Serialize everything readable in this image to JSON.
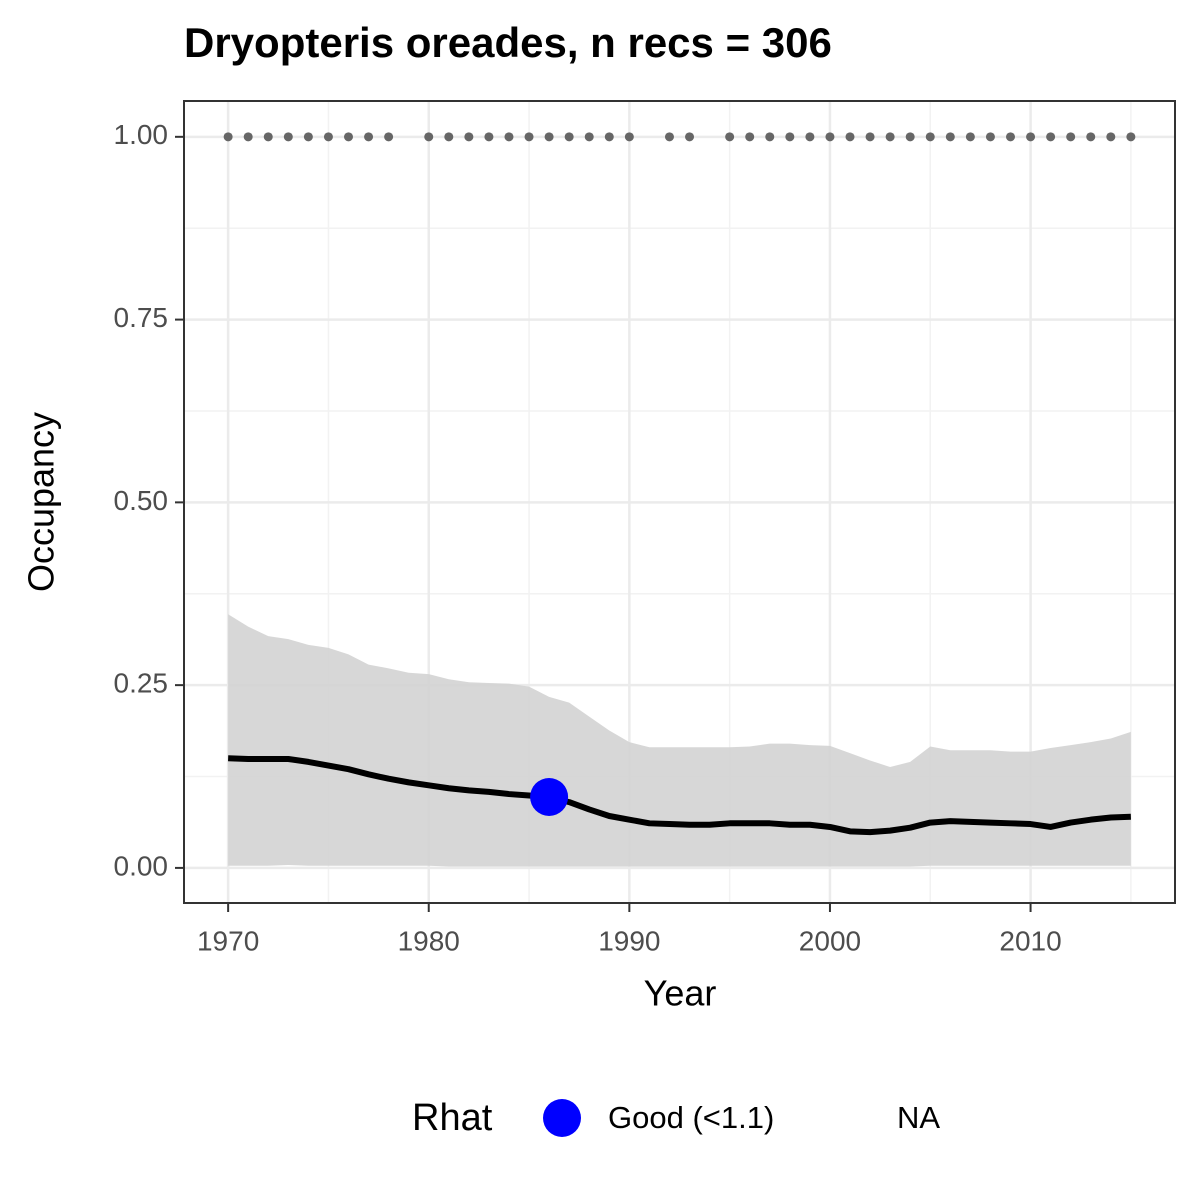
{
  "chart_data": {
    "type": "line",
    "title": "Dryopteris oreades, n recs = 306",
    "xlabel": "Year",
    "ylabel": "Occupancy",
    "x": [
      1970,
      1971,
      1972,
      1973,
      1974,
      1975,
      1976,
      1977,
      1978,
      1979,
      1980,
      1981,
      1982,
      1983,
      1984,
      1985,
      1986,
      1987,
      1988,
      1989,
      1990,
      1991,
      1992,
      1993,
      1994,
      1995,
      1996,
      1997,
      1998,
      1999,
      2000,
      2001,
      2002,
      2003,
      2004,
      2005,
      2006,
      2007,
      2008,
      2009,
      2010,
      2011,
      2012,
      2013,
      2014,
      2015
    ],
    "mean": [
      0.15,
      0.149,
      0.149,
      0.149,
      0.145,
      0.14,
      0.135,
      0.128,
      0.122,
      0.117,
      0.113,
      0.109,
      0.106,
      0.104,
      0.101,
      0.099,
      0.097,
      0.09,
      0.08,
      0.071,
      0.066,
      0.061,
      0.06,
      0.059,
      0.059,
      0.061,
      0.061,
      0.061,
      0.059,
      0.059,
      0.056,
      0.05,
      0.049,
      0.051,
      0.055,
      0.062,
      0.064,
      0.063,
      0.062,
      0.061,
      0.06,
      0.056,
      0.062,
      0.066,
      0.069,
      0.07
    ],
    "upper": [
      0.347,
      0.33,
      0.317,
      0.313,
      0.305,
      0.301,
      0.292,
      0.278,
      0.273,
      0.267,
      0.265,
      0.258,
      0.254,
      0.253,
      0.252,
      0.248,
      0.234,
      0.226,
      0.207,
      0.188,
      0.172,
      0.165,
      0.165,
      0.165,
      0.165,
      0.165,
      0.166,
      0.17,
      0.17,
      0.168,
      0.167,
      0.157,
      0.147,
      0.138,
      0.145,
      0.166,
      0.161,
      0.161,
      0.161,
      0.159,
      0.159,
      0.164,
      0.168,
      0.172,
      0.177,
      0.186
    ],
    "lower": [
      0.003,
      0.003,
      0.003,
      0.004,
      0.003,
      0.003,
      0.003,
      0.003,
      0.003,
      0.003,
      0.003,
      0.002,
      0.002,
      0.002,
      0.002,
      0.002,
      0.002,
      0.002,
      0.002,
      0.002,
      0.002,
      0.002,
      0.002,
      0.002,
      0.002,
      0.002,
      0.002,
      0.002,
      0.002,
      0.002,
      0.002,
      0.002,
      0.002,
      0.002,
      0.002,
      0.003,
      0.003,
      0.003,
      0.003,
      0.003,
      0.003,
      0.003,
      0.003,
      0.003,
      0.003,
      0.003
    ],
    "line_color": "#000000",
    "ribbon_color": "#d3d3d3",
    "records": {
      "x": [
        1970,
        1971,
        1972,
        1973,
        1974,
        1975,
        1976,
        1977,
        1978,
        1980,
        1981,
        1982,
        1983,
        1984,
        1985,
        1986,
        1987,
        1988,
        1989,
        1990,
        1992,
        1993,
        1995,
        1996,
        1997,
        1998,
        1999,
        2000,
        2001,
        2002,
        2003,
        2004,
        2005,
        2006,
        2007,
        2008,
        2009,
        2010,
        2011,
        2012,
        2013,
        2014,
        2015
      ],
      "values": [
        1,
        1,
        1,
        1,
        1,
        1,
        1,
        1,
        1,
        1,
        1,
        1,
        1,
        1,
        1,
        1,
        1,
        1,
        1,
        1,
        1,
        1,
        1,
        1,
        1,
        1,
        1,
        1,
        1,
        1,
        1,
        1,
        1,
        1,
        1,
        1,
        1,
        1,
        1,
        1,
        1,
        1,
        1
      ],
      "color": "#666666"
    },
    "rhat_good_years": [
      1986
    ],
    "legend": {
      "title": "Rhat",
      "entries": [
        {
          "label": "Good (<1.1)",
          "color": "#0000ff"
        },
        {
          "label": "NA"
        }
      ]
    },
    "xlim": [
      1967.8,
      2017.2
    ],
    "xticks": [
      1970,
      1980,
      1990,
      2000,
      2010
    ],
    "ylim": [
      -0.048,
      1.049
    ],
    "yticks": [
      {
        "value": 0,
        "label": "0.00"
      },
      {
        "value": 0.25,
        "label": "0.25"
      },
      {
        "value": 0.5,
        "label": "0.50"
      },
      {
        "value": 0.75,
        "label": "0.75"
      },
      {
        "value": 1,
        "label": "1.00"
      }
    ],
    "grid": true
  }
}
